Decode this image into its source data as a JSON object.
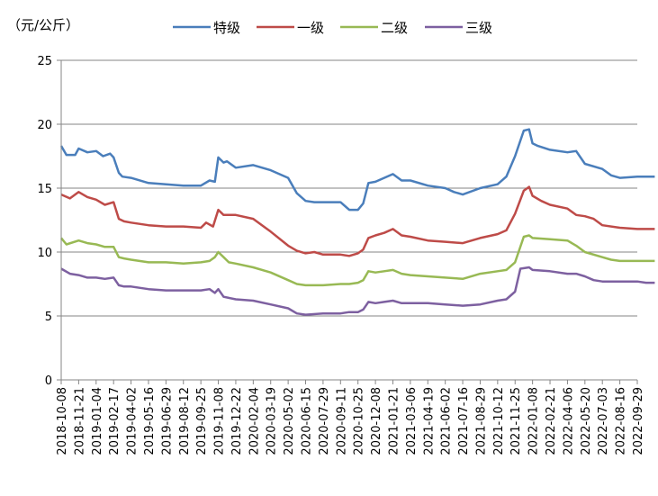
{
  "chart_data": {
    "type": "line",
    "title": "",
    "unit_label": "（元/公斤）",
    "xlabel": "",
    "ylabel": "",
    "ylim": [
      0,
      25
    ],
    "yticks": [
      "0",
      "5",
      "10",
      "15",
      "20",
      "25"
    ],
    "grid": "horizontal",
    "legend": "top",
    "x_tick_labels": [
      "2018-10-08",
      "2018-11-21",
      "2019-01-04",
      "2019-02-17",
      "2019-04-02",
      "2019-05-16",
      "2019-06-29",
      "2019-08-12",
      "2019-09-25",
      "2019-11-08",
      "2019-12-22",
      "2020-02-04",
      "2020-03-19",
      "2020-05-02",
      "2020-06-15",
      "2020-07-29",
      "2020-09-11",
      "2020-10-25",
      "2020-12-08",
      "2021-01-21",
      "2021-03-06",
      "2021-04-19",
      "2021-06-02",
      "2021-07-16",
      "2021-08-29",
      "2021-10-12",
      "2021-11-25",
      "2022-01-08",
      "2022-02-21",
      "2022-04-06",
      "2022-05-20",
      "2022-07-03",
      "2022-08-16",
      "2022-09-29"
    ],
    "series": [
      {
        "name": "特级",
        "color": "#4a7ebb",
        "points": [
          [
            0,
            18.3
          ],
          [
            0.3,
            17.6
          ],
          [
            0.8,
            17.6
          ],
          [
            1,
            18.1
          ],
          [
            1.5,
            17.8
          ],
          [
            2,
            17.9
          ],
          [
            2.4,
            17.5
          ],
          [
            2.8,
            17.7
          ],
          [
            3,
            17.4
          ],
          [
            3.3,
            16.2
          ],
          [
            3.5,
            15.9
          ],
          [
            4,
            15.8
          ],
          [
            5,
            15.4
          ],
          [
            6,
            15.3
          ],
          [
            7,
            15.2
          ],
          [
            8,
            15.2
          ],
          [
            8.5,
            15.6
          ],
          [
            8.8,
            15.5
          ],
          [
            9,
            17.4
          ],
          [
            9.3,
            17.0
          ],
          [
            9.5,
            17.1
          ],
          [
            10,
            16.6
          ],
          [
            11,
            16.8
          ],
          [
            12,
            16.4
          ],
          [
            13,
            15.8
          ],
          [
            13.5,
            14.6
          ],
          [
            14,
            14.0
          ],
          [
            14.5,
            13.9
          ],
          [
            15,
            13.9
          ],
          [
            16,
            13.9
          ],
          [
            16.5,
            13.3
          ],
          [
            17,
            13.3
          ],
          [
            17.3,
            13.8
          ],
          [
            17.6,
            15.4
          ],
          [
            18,
            15.5
          ],
          [
            18.5,
            15.8
          ],
          [
            19,
            16.1
          ],
          [
            19.5,
            15.6
          ],
          [
            20,
            15.6
          ],
          [
            21,
            15.2
          ],
          [
            22,
            15.0
          ],
          [
            22.5,
            14.7
          ],
          [
            23,
            14.5
          ],
          [
            24,
            15.0
          ],
          [
            25,
            15.3
          ],
          [
            25.5,
            15.9
          ],
          [
            26,
            17.5
          ],
          [
            26.5,
            19.5
          ],
          [
            26.8,
            19.6
          ],
          [
            27,
            18.5
          ],
          [
            27.3,
            18.3
          ],
          [
            28,
            18.0
          ],
          [
            29,
            17.8
          ],
          [
            29.5,
            17.9
          ],
          [
            30,
            16.9
          ],
          [
            31,
            16.5
          ],
          [
            31.5,
            16.0
          ],
          [
            32,
            15.8
          ],
          [
            33,
            15.9
          ],
          [
            34,
            15.9
          ]
        ]
      },
      {
        "name": "一级",
        "color": "#be4b48",
        "points": [
          [
            0,
            14.5
          ],
          [
            0.5,
            14.2
          ],
          [
            1,
            14.7
          ],
          [
            1.5,
            14.3
          ],
          [
            2,
            14.1
          ],
          [
            2.5,
            13.7
          ],
          [
            3,
            13.9
          ],
          [
            3.3,
            12.6
          ],
          [
            3.6,
            12.4
          ],
          [
            4,
            12.3
          ],
          [
            5,
            12.1
          ],
          [
            6,
            12.0
          ],
          [
            7,
            12.0
          ],
          [
            8,
            11.9
          ],
          [
            8.3,
            12.3
          ],
          [
            8.7,
            12.0
          ],
          [
            9,
            13.3
          ],
          [
            9.3,
            12.9
          ],
          [
            10,
            12.9
          ],
          [
            11,
            12.6
          ],
          [
            12,
            11.6
          ],
          [
            13,
            10.5
          ],
          [
            13.5,
            10.1
          ],
          [
            14,
            9.9
          ],
          [
            14.5,
            10.0
          ],
          [
            15,
            9.8
          ],
          [
            16,
            9.8
          ],
          [
            16.5,
            9.7
          ],
          [
            17,
            9.9
          ],
          [
            17.3,
            10.2
          ],
          [
            17.6,
            11.1
          ],
          [
            18,
            11.3
          ],
          [
            18.5,
            11.5
          ],
          [
            19,
            11.8
          ],
          [
            19.5,
            11.3
          ],
          [
            20,
            11.2
          ],
          [
            21,
            10.9
          ],
          [
            22,
            10.8
          ],
          [
            23,
            10.7
          ],
          [
            24,
            11.1
          ],
          [
            25,
            11.4
          ],
          [
            25.5,
            11.7
          ],
          [
            26,
            13.0
          ],
          [
            26.5,
            14.8
          ],
          [
            26.8,
            15.1
          ],
          [
            27,
            14.4
          ],
          [
            27.5,
            14.0
          ],
          [
            28,
            13.7
          ],
          [
            29,
            13.4
          ],
          [
            29.5,
            12.9
          ],
          [
            30,
            12.8
          ],
          [
            30.5,
            12.6
          ],
          [
            31,
            12.1
          ],
          [
            32,
            11.9
          ],
          [
            33,
            11.8
          ],
          [
            34,
            11.8
          ]
        ]
      },
      {
        "name": "二级",
        "color": "#98b954",
        "points": [
          [
            0,
            11.1
          ],
          [
            0.3,
            10.6
          ],
          [
            1,
            10.9
          ],
          [
            1.5,
            10.7
          ],
          [
            2,
            10.6
          ],
          [
            2.5,
            10.4
          ],
          [
            3,
            10.4
          ],
          [
            3.3,
            9.6
          ],
          [
            3.6,
            9.5
          ],
          [
            4,
            9.4
          ],
          [
            5,
            9.2
          ],
          [
            6,
            9.2
          ],
          [
            7,
            9.1
          ],
          [
            8,
            9.2
          ],
          [
            8.5,
            9.3
          ],
          [
            8.8,
            9.6
          ],
          [
            9,
            10.0
          ],
          [
            9.3,
            9.6
          ],
          [
            9.6,
            9.2
          ],
          [
            10,
            9.1
          ],
          [
            11,
            8.8
          ],
          [
            12,
            8.4
          ],
          [
            13,
            7.8
          ],
          [
            13.5,
            7.5
          ],
          [
            14,
            7.4
          ],
          [
            15,
            7.4
          ],
          [
            16,
            7.5
          ],
          [
            16.5,
            7.5
          ],
          [
            17,
            7.6
          ],
          [
            17.3,
            7.8
          ],
          [
            17.6,
            8.5
          ],
          [
            18,
            8.4
          ],
          [
            18.5,
            8.5
          ],
          [
            19,
            8.6
          ],
          [
            19.5,
            8.3
          ],
          [
            20,
            8.2
          ],
          [
            21,
            8.1
          ],
          [
            22,
            8.0
          ],
          [
            23,
            7.9
          ],
          [
            24,
            8.3
          ],
          [
            25,
            8.5
          ],
          [
            25.5,
            8.6
          ],
          [
            26,
            9.2
          ],
          [
            26.5,
            11.2
          ],
          [
            26.8,
            11.3
          ],
          [
            27,
            11.1
          ],
          [
            28,
            11.0
          ],
          [
            29,
            10.9
          ],
          [
            29.5,
            10.5
          ],
          [
            30,
            10.0
          ],
          [
            31,
            9.6
          ],
          [
            31.5,
            9.4
          ],
          [
            32,
            9.3
          ],
          [
            33,
            9.3
          ],
          [
            34,
            9.3
          ]
        ]
      },
      {
        "name": "三级",
        "color": "#7d60a0",
        "points": [
          [
            0,
            8.7
          ],
          [
            0.5,
            8.3
          ],
          [
            1,
            8.2
          ],
          [
            1.5,
            8.0
          ],
          [
            2,
            8.0
          ],
          [
            2.5,
            7.9
          ],
          [
            3,
            8.0
          ],
          [
            3.3,
            7.4
          ],
          [
            3.6,
            7.3
          ],
          [
            4,
            7.3
          ],
          [
            5,
            7.1
          ],
          [
            6,
            7.0
          ],
          [
            7,
            7.0
          ],
          [
            8,
            7.0
          ],
          [
            8.5,
            7.1
          ],
          [
            8.8,
            6.8
          ],
          [
            9,
            7.1
          ],
          [
            9.3,
            6.5
          ],
          [
            10,
            6.3
          ],
          [
            11,
            6.2
          ],
          [
            12,
            5.9
          ],
          [
            13,
            5.6
          ],
          [
            13.5,
            5.2
          ],
          [
            14,
            5.1
          ],
          [
            15,
            5.2
          ],
          [
            16,
            5.2
          ],
          [
            16.5,
            5.3
          ],
          [
            17,
            5.3
          ],
          [
            17.3,
            5.5
          ],
          [
            17.6,
            6.1
          ],
          [
            18,
            6.0
          ],
          [
            18.5,
            6.1
          ],
          [
            19,
            6.2
          ],
          [
            19.5,
            6.0
          ],
          [
            20,
            6.0
          ],
          [
            21,
            6.0
          ],
          [
            22,
            5.9
          ],
          [
            23,
            5.8
          ],
          [
            24,
            5.9
          ],
          [
            25,
            6.2
          ],
          [
            25.5,
            6.3
          ],
          [
            26,
            6.9
          ],
          [
            26.3,
            8.7
          ],
          [
            26.8,
            8.8
          ],
          [
            27,
            8.6
          ],
          [
            28,
            8.5
          ],
          [
            29,
            8.3
          ],
          [
            29.5,
            8.3
          ],
          [
            30,
            8.1
          ],
          [
            30.5,
            7.8
          ],
          [
            31,
            7.7
          ],
          [
            32,
            7.7
          ],
          [
            33,
            7.7
          ],
          [
            33.5,
            7.6
          ],
          [
            34,
            7.6
          ]
        ]
      }
    ]
  }
}
